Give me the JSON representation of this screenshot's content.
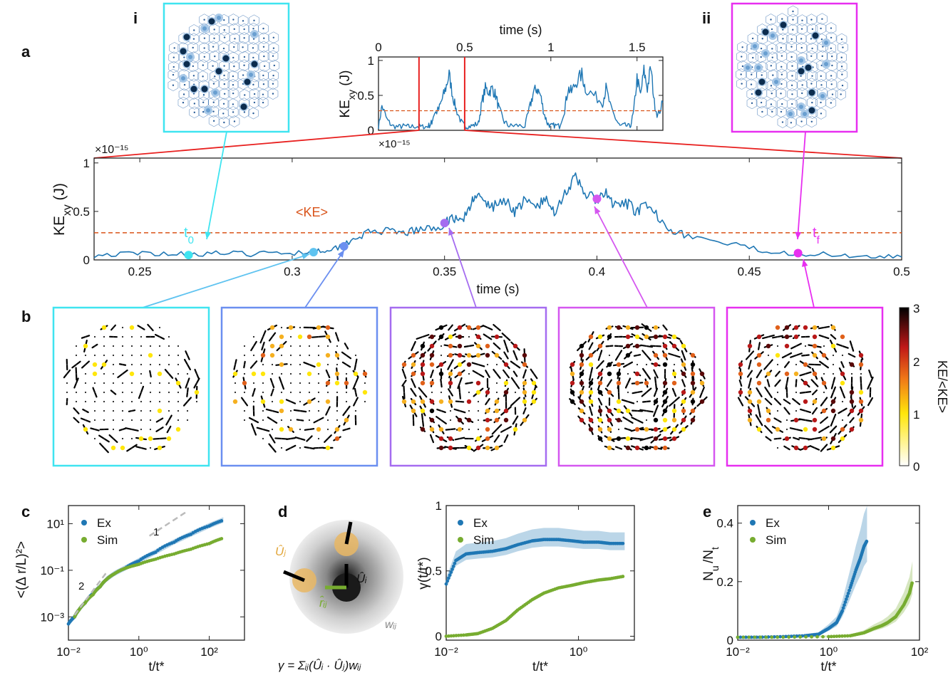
{
  "panel_labels": {
    "a": "a",
    "b": "b",
    "c": "c",
    "d": "d",
    "e": "e",
    "i": "i",
    "ii": "ii"
  },
  "colors": {
    "series_ex": "#1f77b4",
    "series_sim": "#77ac30",
    "ke_mean": "#d95319",
    "window_marker": "#e8201f",
    "cyan": "#3fe4f0",
    "light_blue": "#5fc3f0",
    "blue": "#6b8ff0",
    "purple": "#a56cf0",
    "violet": "#d557f0",
    "magenta": "#e72ff0"
  },
  "chart_data": [
    {
      "id": "inset_ke_time",
      "type": "line",
      "xlabel": "time (s)",
      "ylabel": "KE_xy (J)",
      "exponent": "×10⁻¹⁵",
      "xlim": [
        0,
        1.65
      ],
      "ylim": [
        0,
        1.05
      ],
      "xticks": [
        {
          "v": 0,
          "label": "0"
        },
        {
          "v": 0.5,
          "label": "0.5"
        },
        {
          "v": 1,
          "label": "1"
        },
        {
          "v": 1.5,
          "label": "1.5"
        }
      ],
      "yticks": [
        {
          "v": 0,
          "label": "0"
        },
        {
          "v": 0.5,
          "label": "0.5"
        },
        {
          "v": 1,
          "label": "1"
        }
      ],
      "mean_ke": 0.28,
      "window": [
        0.235,
        0.5
      ],
      "series": [
        {
          "x": [
            0,
            0.02,
            0.05,
            0.08,
            0.12,
            0.15,
            0.18,
            0.22,
            0.25,
            0.28,
            0.3,
            0.31,
            0.32,
            0.35,
            0.37,
            0.39,
            0.41,
            0.43,
            0.45,
            0.48,
            0.5,
            0.52,
            0.55,
            0.58,
            0.6,
            0.62,
            0.64,
            0.66,
            0.68,
            0.7,
            0.73,
            0.76,
            0.8,
            0.85,
            0.88,
            0.9,
            0.92,
            0.94,
            0.96,
            0.98,
            1.0,
            1.02,
            1.05,
            1.08,
            1.1,
            1.12,
            1.15,
            1.18,
            1.2,
            1.25,
            1.3,
            1.32,
            1.35,
            1.38,
            1.4,
            1.43,
            1.46,
            1.48,
            1.5,
            1.52,
            1.54,
            1.56,
            1.58,
            1.6,
            1.62,
            1.65
          ],
          "y": [
            0.05,
            0.35,
            0.15,
            0.06,
            0.05,
            0.06,
            0.05,
            0.06,
            0.05,
            0.05,
            0.08,
            0.12,
            0.22,
            0.3,
            0.45,
            0.6,
            0.8,
            0.5,
            0.3,
            0.12,
            0.06,
            0.05,
            0.07,
            0.1,
            0.4,
            0.6,
            0.55,
            0.6,
            0.5,
            0.3,
            0.12,
            0.06,
            0.07,
            0.06,
            0.35,
            0.55,
            0.6,
            0.5,
            0.25,
            0.1,
            0.06,
            0.07,
            0.06,
            0.3,
            0.6,
            0.55,
            0.7,
            0.8,
            0.6,
            0.5,
            0.4,
            0.6,
            0.3,
            0.15,
            0.06,
            0.07,
            0.05,
            0.25,
            0.75,
            0.5,
            0.85,
            0.6,
            0.9,
            0.4,
            0.2,
            0.4
          ]
        }
      ]
    },
    {
      "id": "main_ke_time",
      "type": "line",
      "xlabel": "time (s)",
      "ylabel": "KE_xy (J)",
      "exponent": "×10⁻¹⁵",
      "xlim": [
        0.235,
        0.5
      ],
      "ylim": [
        0,
        1.05
      ],
      "xticks": [
        {
          "v": 0.25,
          "label": "0.25"
        },
        {
          "v": 0.3,
          "label": "0.3"
        },
        {
          "v": 0.35,
          "label": "0.35"
        },
        {
          "v": 0.4,
          "label": "0.4"
        },
        {
          "v": 0.45,
          "label": "0.45"
        },
        {
          "v": 0.5,
          "label": "0.5"
        }
      ],
      "yticks": [
        {
          "v": 0,
          "label": "0"
        },
        {
          "v": 0.5,
          "label": "0.5"
        },
        {
          "v": 1,
          "label": "1"
        }
      ],
      "mean_ke": 0.28,
      "mean_label": "<KE>",
      "t0_label": "t₀",
      "tf_label": "t_f",
      "series": [
        {
          "x": [
            0.235,
            0.245,
            0.255,
            0.265,
            0.275,
            0.285,
            0.295,
            0.305,
            0.31,
            0.315,
            0.32,
            0.325,
            0.33,
            0.335,
            0.34,
            0.345,
            0.35,
            0.352,
            0.355,
            0.358,
            0.36,
            0.363,
            0.366,
            0.37,
            0.373,
            0.376,
            0.38,
            0.383,
            0.386,
            0.39,
            0.393,
            0.396,
            0.4,
            0.403,
            0.406,
            0.41,
            0.413,
            0.416,
            0.42,
            0.425,
            0.43,
            0.44,
            0.45,
            0.46,
            0.47,
            0.48,
            0.49,
            0.5
          ],
          "y": [
            0.05,
            0.06,
            0.07,
            0.06,
            0.07,
            0.06,
            0.07,
            0.08,
            0.1,
            0.13,
            0.22,
            0.28,
            0.3,
            0.27,
            0.3,
            0.32,
            0.35,
            0.45,
            0.4,
            0.5,
            0.7,
            0.58,
            0.55,
            0.62,
            0.5,
            0.6,
            0.55,
            0.62,
            0.5,
            0.72,
            0.83,
            0.7,
            0.6,
            0.68,
            0.55,
            0.58,
            0.5,
            0.55,
            0.45,
            0.3,
            0.25,
            0.18,
            0.12,
            0.08,
            0.06,
            0.05,
            0.04,
            0.03
          ]
        }
      ],
      "markers": [
        {
          "x": 0.266,
          "y": 0.05,
          "color": "cyan"
        },
        {
          "x": 0.307,
          "y": 0.08,
          "color": "light_blue"
        },
        {
          "x": 0.317,
          "y": 0.14,
          "color": "blue"
        },
        {
          "x": 0.35,
          "y": 0.38,
          "color": "purple"
        },
        {
          "x": 0.4,
          "y": 0.63,
          "color": "violet"
        },
        {
          "x": 0.466,
          "y": 0.07,
          "color": "magenta"
        }
      ]
    },
    {
      "id": "msd",
      "type": "scatter",
      "xlabel": "t/t*",
      "ylabel": "<(Δ r/L)²>",
      "xscale": "log",
      "yscale": "log",
      "xlim": [
        0.01,
        1000
      ],
      "ylim": [
        0.0001,
        60
      ],
      "xticks": [
        {
          "v": 0.01,
          "label": "10⁻²"
        },
        {
          "v": 1,
          "label": "10⁰"
        },
        {
          "v": 100,
          "label": "10²"
        }
      ],
      "yticks": [
        {
          "v": 0.001,
          "label": "10⁻³"
        },
        {
          "v": 0.1,
          "label": "10⁻¹"
        },
        {
          "v": 10,
          "label": "10¹"
        }
      ],
      "legend": [
        "Ex",
        "Sim"
      ],
      "slope_labels": [
        "2",
        "1"
      ],
      "series": [
        {
          "name": "Ex",
          "x": [
            0.01,
            0.015,
            0.02,
            0.03,
            0.05,
            0.08,
            0.12,
            0.2,
            0.4,
            1,
            3,
            10,
            30,
            100,
            250
          ],
          "y": [
            0.0005,
            0.001,
            0.002,
            0.004,
            0.01,
            0.02,
            0.04,
            0.07,
            0.12,
            0.25,
            0.6,
            1.6,
            3.5,
            8,
            14
          ]
        },
        {
          "name": "Sim",
          "x": [
            0.015,
            0.02,
            0.03,
            0.05,
            0.08,
            0.12,
            0.2,
            0.4,
            1,
            3,
            10,
            30,
            100,
            250
          ],
          "y": [
            0.001,
            0.002,
            0.004,
            0.009,
            0.02,
            0.04,
            0.07,
            0.12,
            0.18,
            0.3,
            0.5,
            0.8,
            1.4,
            2.4
          ]
        }
      ]
    },
    {
      "id": "gamma",
      "type": "scatter",
      "xlabel": "t/t*",
      "ylabel": "γ(t/t*)",
      "xscale": "log",
      "xlim": [
        0.01,
        7
      ],
      "ylim": [
        -0.03,
        1
      ],
      "xticks": [
        {
          "v": 0.01,
          "label": "10⁻²"
        },
        {
          "v": 1,
          "label": "10⁰"
        }
      ],
      "yticks": [
        {
          "v": 0,
          "label": "0"
        },
        {
          "v": 0.5,
          "label": "0.5"
        },
        {
          "v": 1,
          "label": "1"
        }
      ],
      "legend": [
        "Ex",
        "Sim"
      ],
      "series": [
        {
          "name": "Ex",
          "x": [
            0.01,
            0.014,
            0.02,
            0.03,
            0.05,
            0.08,
            0.12,
            0.2,
            0.3,
            0.5,
            0.8,
            1.2,
            2,
            3,
            5
          ],
          "y": [
            0.4,
            0.58,
            0.63,
            0.64,
            0.65,
            0.67,
            0.7,
            0.73,
            0.74,
            0.74,
            0.73,
            0.72,
            0.72,
            0.71,
            0.71
          ]
        },
        {
          "name": "Sim",
          "x": [
            0.01,
            0.02,
            0.03,
            0.05,
            0.08,
            0.12,
            0.2,
            0.3,
            0.5,
            0.8,
            1.2,
            2,
            3,
            5
          ],
          "y": [
            0.0,
            0.01,
            0.02,
            0.06,
            0.12,
            0.2,
            0.28,
            0.33,
            0.37,
            0.39,
            0.41,
            0.43,
            0.44,
            0.46
          ]
        }
      ]
    },
    {
      "id": "nu_nt",
      "type": "scatter",
      "xlabel": "t/t*",
      "ylabel": "N_u/N_t",
      "xscale": "log",
      "xlim": [
        0.01,
        100
      ],
      "ylim": [
        0,
        0.46
      ],
      "xticks": [
        {
          "v": 0.01,
          "label": "10⁻²"
        },
        {
          "v": 1,
          "label": "10⁰"
        },
        {
          "v": 100,
          "label": "10²"
        }
      ],
      "yticks": [
        {
          "v": 0,
          "label": "0"
        },
        {
          "v": 0.2,
          "label": "0.2"
        },
        {
          "v": 0.4,
          "label": "0.4"
        }
      ],
      "legend": [
        "Ex",
        "Sim"
      ],
      "series": [
        {
          "name": "Ex",
          "x": [
            0.01,
            0.03,
            0.1,
            0.3,
            0.6,
            1,
            1.5,
            2,
            3,
            4,
            5,
            6,
            7
          ],
          "y": [
            0.01,
            0.01,
            0.012,
            0.015,
            0.02,
            0.04,
            0.06,
            0.1,
            0.18,
            0.24,
            0.28,
            0.32,
            0.34
          ]
        },
        {
          "name": "Sim",
          "x": [
            0.01,
            0.1,
            1,
            3,
            6,
            10,
            15,
            20,
            30,
            45,
            60,
            70
          ],
          "y": [
            0.01,
            0.01,
            0.012,
            0.015,
            0.025,
            0.04,
            0.05,
            0.06,
            0.08,
            0.12,
            0.16,
            0.2
          ]
        }
      ]
    }
  ],
  "colorbar": {
    "label": "KE/<KE>",
    "ticks": [
      "3",
      "2",
      "1",
      "0"
    ]
  },
  "formula": "γ = Σᵢⱼ(Ûᵢ · Ûⱼ)wᵢⱼ",
  "diagram_labels": {
    "ui": "Ûᵢ",
    "uj": "Ûⱼ",
    "rij": "r̂ᵢⱼ",
    "wij": "wᵢⱼ"
  }
}
